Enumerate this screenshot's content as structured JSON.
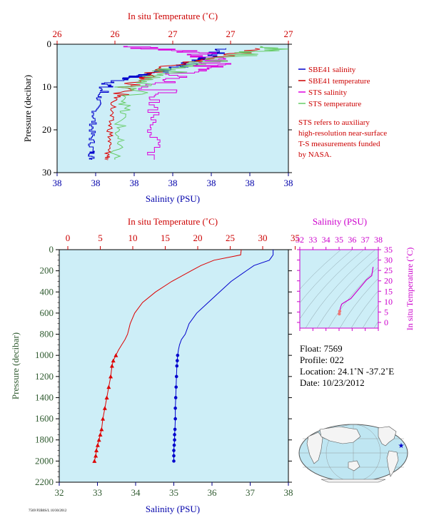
{
  "top_panel": {
    "temp_axis_title": "In situ Temperature (˚C)",
    "temp_ticks": [
      "26",
      "26",
      "27",
      "27",
      "27"
    ],
    "pressure_axis_title": "Pressure (decibar)",
    "pressure_ticks": [
      "0",
      "10",
      "20",
      "30"
    ],
    "salinity_axis_title": "Salinity (PSU)",
    "salinity_ticks": [
      "38",
      "38",
      "38",
      "38",
      "38",
      "38",
      "38"
    ],
    "legend": [
      {
        "label": "SBE41 salinity",
        "color": "#0000cc"
      },
      {
        "label": "SBE41 temperature",
        "color": "#cc0000"
      },
      {
        "label": "STS salinity",
        "color": "#dd00dd"
      },
      {
        "label": "STS temperature",
        "color": "#66cc66"
      }
    ],
    "note_lines": [
      "STS refers to auxiliary",
      "high-resolution near-surface",
      "T-S measurements funded",
      "by NASA."
    ]
  },
  "bottom_panel": {
    "temp_axis_title": "In situ Temperature (˚C)",
    "temp_ticks": [
      "0",
      "5",
      "10",
      "15",
      "20",
      "25",
      "30",
      "35"
    ],
    "pressure_axis_title": "Pressure (decibar)",
    "pressure_ticks": [
      "0",
      "200",
      "400",
      "600",
      "800",
      "1000",
      "1200",
      "1400",
      "1600",
      "1800",
      "2000",
      "2200"
    ],
    "salinity_axis_title": "Salinity (PSU)",
    "salinity_ticks": [
      "32",
      "33",
      "34",
      "35",
      "36",
      "37",
      "38"
    ]
  },
  "ts_panel": {
    "salinity_axis_title": "Salinity (PSU)",
    "salinity_ticks": [
      "32",
      "33",
      "34",
      "35",
      "36",
      "37",
      "38"
    ],
    "temp_axis_title": "In situ Temperature (˚C)",
    "temp_ticks": [
      "0",
      "5",
      "10",
      "15",
      "20",
      "25",
      "30",
      "35"
    ]
  },
  "float_info": {
    "float": "Float:  7569",
    "profile": "Profile:  022",
    "location": "Location:  24.1˚N  -37.2˚E",
    "date": "Date:  10/23/2012"
  },
  "footer_text": "7569 P2B0S/L 10/30/2012",
  "colors": {
    "plot_bg": "#cdeef7",
    "temperature": "#dd0000",
    "salinity": "#0000cc",
    "sts_salinity": "#dd00dd",
    "sts_temperature": "#66cc66"
  },
  "chart_data": [
    {
      "type": "line",
      "title": "",
      "xlabel": "Salinity (PSU)",
      "x2label": "In situ Temperature (˚C)",
      "ylabel": "Pressure (decibar)",
      "ylim": [
        0,
        30
      ],
      "y_inverted": true,
      "series": [
        {
          "name": "SBE41 salinity",
          "x_norm": [
            0.73,
            0.66,
            0.55,
            0.4,
            0.3,
            0.2,
            0.18,
            0.16,
            0.15,
            0.15,
            0.15
          ],
          "pressure": [
            1,
            3,
            5,
            7,
            8,
            10,
            13,
            17,
            21,
            25,
            27
          ]
        },
        {
          "name": "SBE41 temperature",
          "x_norm": [
            0.9,
            0.7,
            0.5,
            0.4,
            0.38,
            0.3,
            0.25,
            0.23,
            0.23,
            0.22,
            0.22
          ],
          "pressure": [
            1,
            3,
            5,
            7,
            8,
            10,
            13,
            17,
            21,
            25,
            27
          ]
        },
        {
          "name": "STS salinity",
          "x_norm": [
            0.3,
            0.6,
            0.7,
            0.6,
            0.45,
            0.42,
            0.42,
            0.42
          ],
          "pressure": [
            0.5,
            2,
            4,
            6,
            9,
            13,
            20,
            27
          ]
        },
        {
          "name": "STS temperature",
          "x_norm": [
            0.96,
            0.85,
            0.65,
            0.5,
            0.35,
            0.3,
            0.28,
            0.26,
            0.25
          ],
          "pressure": [
            0.5,
            2,
            4,
            6,
            9,
            13,
            17,
            22,
            27
          ]
        }
      ]
    },
    {
      "type": "line",
      "title": "",
      "xlabel": "Salinity (PSU)",
      "xlim": [
        32,
        38
      ],
      "x2label": "In situ Temperature (˚C)",
      "x2lim": [
        0,
        35
      ],
      "ylabel": "Pressure (decibar)",
      "ylim": [
        0,
        2200
      ],
      "y_inverted": true,
      "series": [
        {
          "name": "Temperature",
          "x_axis": "temperature",
          "x": [
            26.7,
            26.6,
            22.5,
            20.5,
            19.0,
            16.0,
            13.5,
            11.5,
            10.3,
            9.6,
            9.2,
            8.8,
            8.3,
            7.8,
            7.4,
            7.0,
            6.8,
            6.6,
            6.3,
            6.0,
            5.7,
            5.4,
            5.2,
            5.0,
            4.8,
            4.6,
            4.4,
            4.3,
            4.1
          ],
          "pressure": [
            0,
            50,
            100,
            150,
            200,
            300,
            400,
            500,
            600,
            700,
            800,
            850,
            900,
            950,
            1000,
            1050,
            1100,
            1200,
            1300,
            1400,
            1500,
            1600,
            1700,
            1750,
            1800,
            1850,
            1900,
            1950,
            2000
          ],
          "markers_from_pressure": 1000
        },
        {
          "name": "Salinity",
          "x_axis": "salinity",
          "x": [
            37.6,
            37.6,
            37.5,
            37.1,
            36.9,
            36.5,
            36.2,
            35.9,
            35.6,
            35.4,
            35.3,
            35.2,
            35.15,
            35.12,
            35.1,
            35.09,
            35.08,
            35.07,
            35.06,
            35.05,
            35.04,
            35.04,
            35.03,
            35.02,
            35.02,
            35.01,
            35.0,
            35.0,
            35.0
          ],
          "pressure": [
            0,
            50,
            100,
            150,
            200,
            300,
            400,
            500,
            600,
            700,
            800,
            850,
            900,
            950,
            1000,
            1050,
            1100,
            1200,
            1300,
            1400,
            1500,
            1600,
            1700,
            1750,
            1800,
            1850,
            1900,
            1950,
            2000
          ],
          "markers_from_pressure": 1000
        }
      ]
    },
    {
      "type": "scatter",
      "title": "",
      "xlabel": "Salinity (PSU)",
      "xlim": [
        32,
        38
      ],
      "ylabel": "In situ Temperature (˚C)",
      "ylim": [
        0,
        35
      ],
      "series": [
        {
          "name": "T-S curve",
          "salinity": [
            37.6,
            37.5,
            37.1,
            36.5,
            35.9,
            35.4,
            35.2,
            35.1,
            35.05,
            35.02
          ],
          "temperature": [
            26.7,
            22.5,
            20.5,
            16.0,
            11.5,
            9.6,
            8.8,
            7.0,
            5.4,
            4.1
          ]
        }
      ]
    }
  ]
}
